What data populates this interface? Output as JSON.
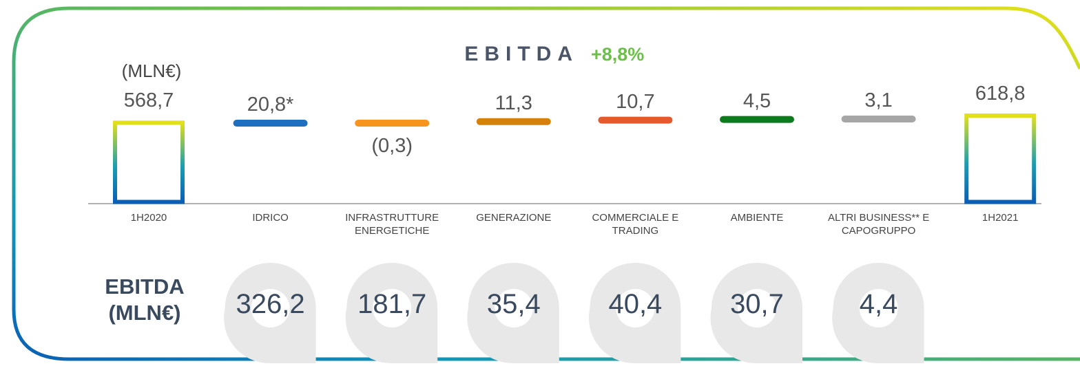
{
  "chart_data": {
    "type": "waterfall",
    "title": "EBITDA",
    "change": "+8,8%",
    "unit": "(MLN€)",
    "categories": [
      "1H2020",
      "IDRICO",
      "INFRASTRUTTURE ENERGETICHE",
      "GENERAZIONE",
      "COMMERCIALE E TRADING",
      "AMBIENTE",
      "ALTRI BUSINESS** E CAPOGRUPPO",
      "1H2021"
    ],
    "values": [
      568.7,
      20.8,
      -0.3,
      11.3,
      10.7,
      4.5,
      3.1,
      618.8
    ],
    "value_labels": [
      "568,7",
      "20,8*",
      "(0,3)",
      "11,3",
      "10,7",
      "4,5",
      "3,1",
      "618,8"
    ],
    "is_total": [
      true,
      false,
      false,
      false,
      false,
      false,
      false,
      true
    ],
    "colors": [
      "#0a5fb5",
      "#1f6fc0",
      "#f7941d",
      "#d4820a",
      "#e55a2b",
      "#0d7a1e",
      "#a6a6a6",
      "#0a5fb5"
    ],
    "total_top_color": "#e3e01a",
    "bottom_row": {
      "label": "EBITDA (MLN€)",
      "values": [
        "326,2",
        "181,7",
        "35,4",
        "40,4",
        "30,7",
        "4,4"
      ]
    }
  }
}
